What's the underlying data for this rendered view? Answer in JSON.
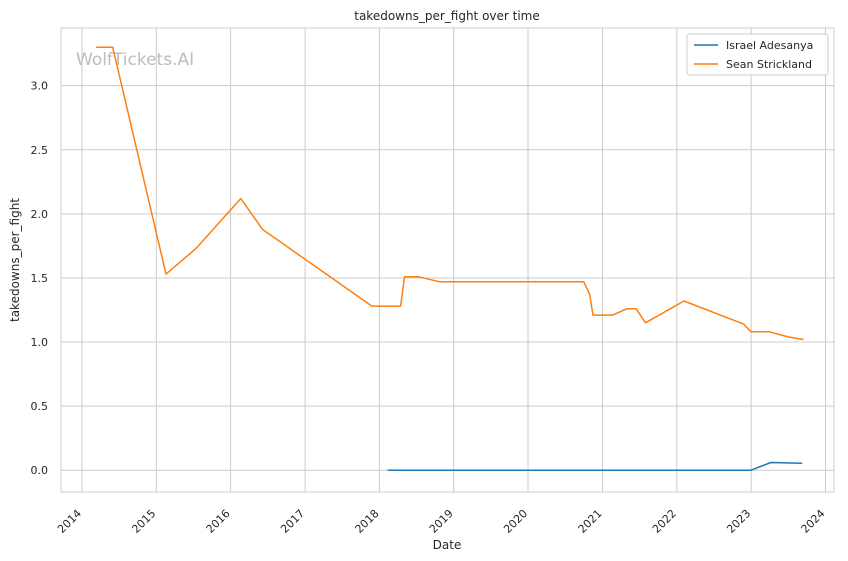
{
  "watermark": "WolfTickets.AI",
  "chart_data": {
    "type": "line",
    "title": "takedowns_per_fight over time",
    "xlabel": "Date",
    "ylabel": "takedowns_per_fight",
    "x_ticks": [
      "2014",
      "2015",
      "2016",
      "2017",
      "2018",
      "2019",
      "2020",
      "2021",
      "2022",
      "2023",
      "2024"
    ],
    "y_ticks": [
      "0.0",
      "0.5",
      "1.0",
      "1.5",
      "2.0",
      "2.5",
      "3.0"
    ],
    "xlim": [
      "2013-09-20",
      "2024-02-12"
    ],
    "ylim": [
      -0.17,
      3.45
    ],
    "grid": true,
    "legend_position": "top-right",
    "series": [
      {
        "name": "Israel Adesanya",
        "color": "#1f77b4",
        "points": [
          [
            "2018-02-10",
            0.0
          ],
          [
            "2022-12-31",
            0.0
          ],
          [
            "2023-04-08",
            0.06
          ],
          [
            "2023-09-09",
            0.055
          ]
        ]
      },
      {
        "name": "Sean Strickland",
        "color": "#ff7f0e",
        "points": [
          [
            "2014-03-12",
            3.3
          ],
          [
            "2014-06-01",
            3.3
          ],
          [
            "2015-02-18",
            1.53
          ],
          [
            "2015-07-15",
            1.73
          ],
          [
            "2016-02-20",
            2.12
          ],
          [
            "2016-06-05",
            1.88
          ],
          [
            "2017-11-25",
            1.28
          ],
          [
            "2018-04-15",
            1.28
          ],
          [
            "2018-05-05",
            1.51
          ],
          [
            "2018-07-10",
            1.51
          ],
          [
            "2018-10-25",
            1.47
          ],
          [
            "2020-10-01",
            1.47
          ],
          [
            "2020-10-30",
            1.37
          ],
          [
            "2020-11-15",
            1.21
          ],
          [
            "2021-02-20",
            1.21
          ],
          [
            "2021-05-01",
            1.26
          ],
          [
            "2021-06-15",
            1.26
          ],
          [
            "2021-07-31",
            1.15
          ],
          [
            "2022-02-05",
            1.32
          ],
          [
            "2022-11-25",
            1.14
          ],
          [
            "2023-01-01",
            1.08
          ],
          [
            "2023-04-01",
            1.08
          ],
          [
            "2023-07-01",
            1.04
          ],
          [
            "2023-09-15",
            1.02
          ]
        ]
      }
    ]
  }
}
